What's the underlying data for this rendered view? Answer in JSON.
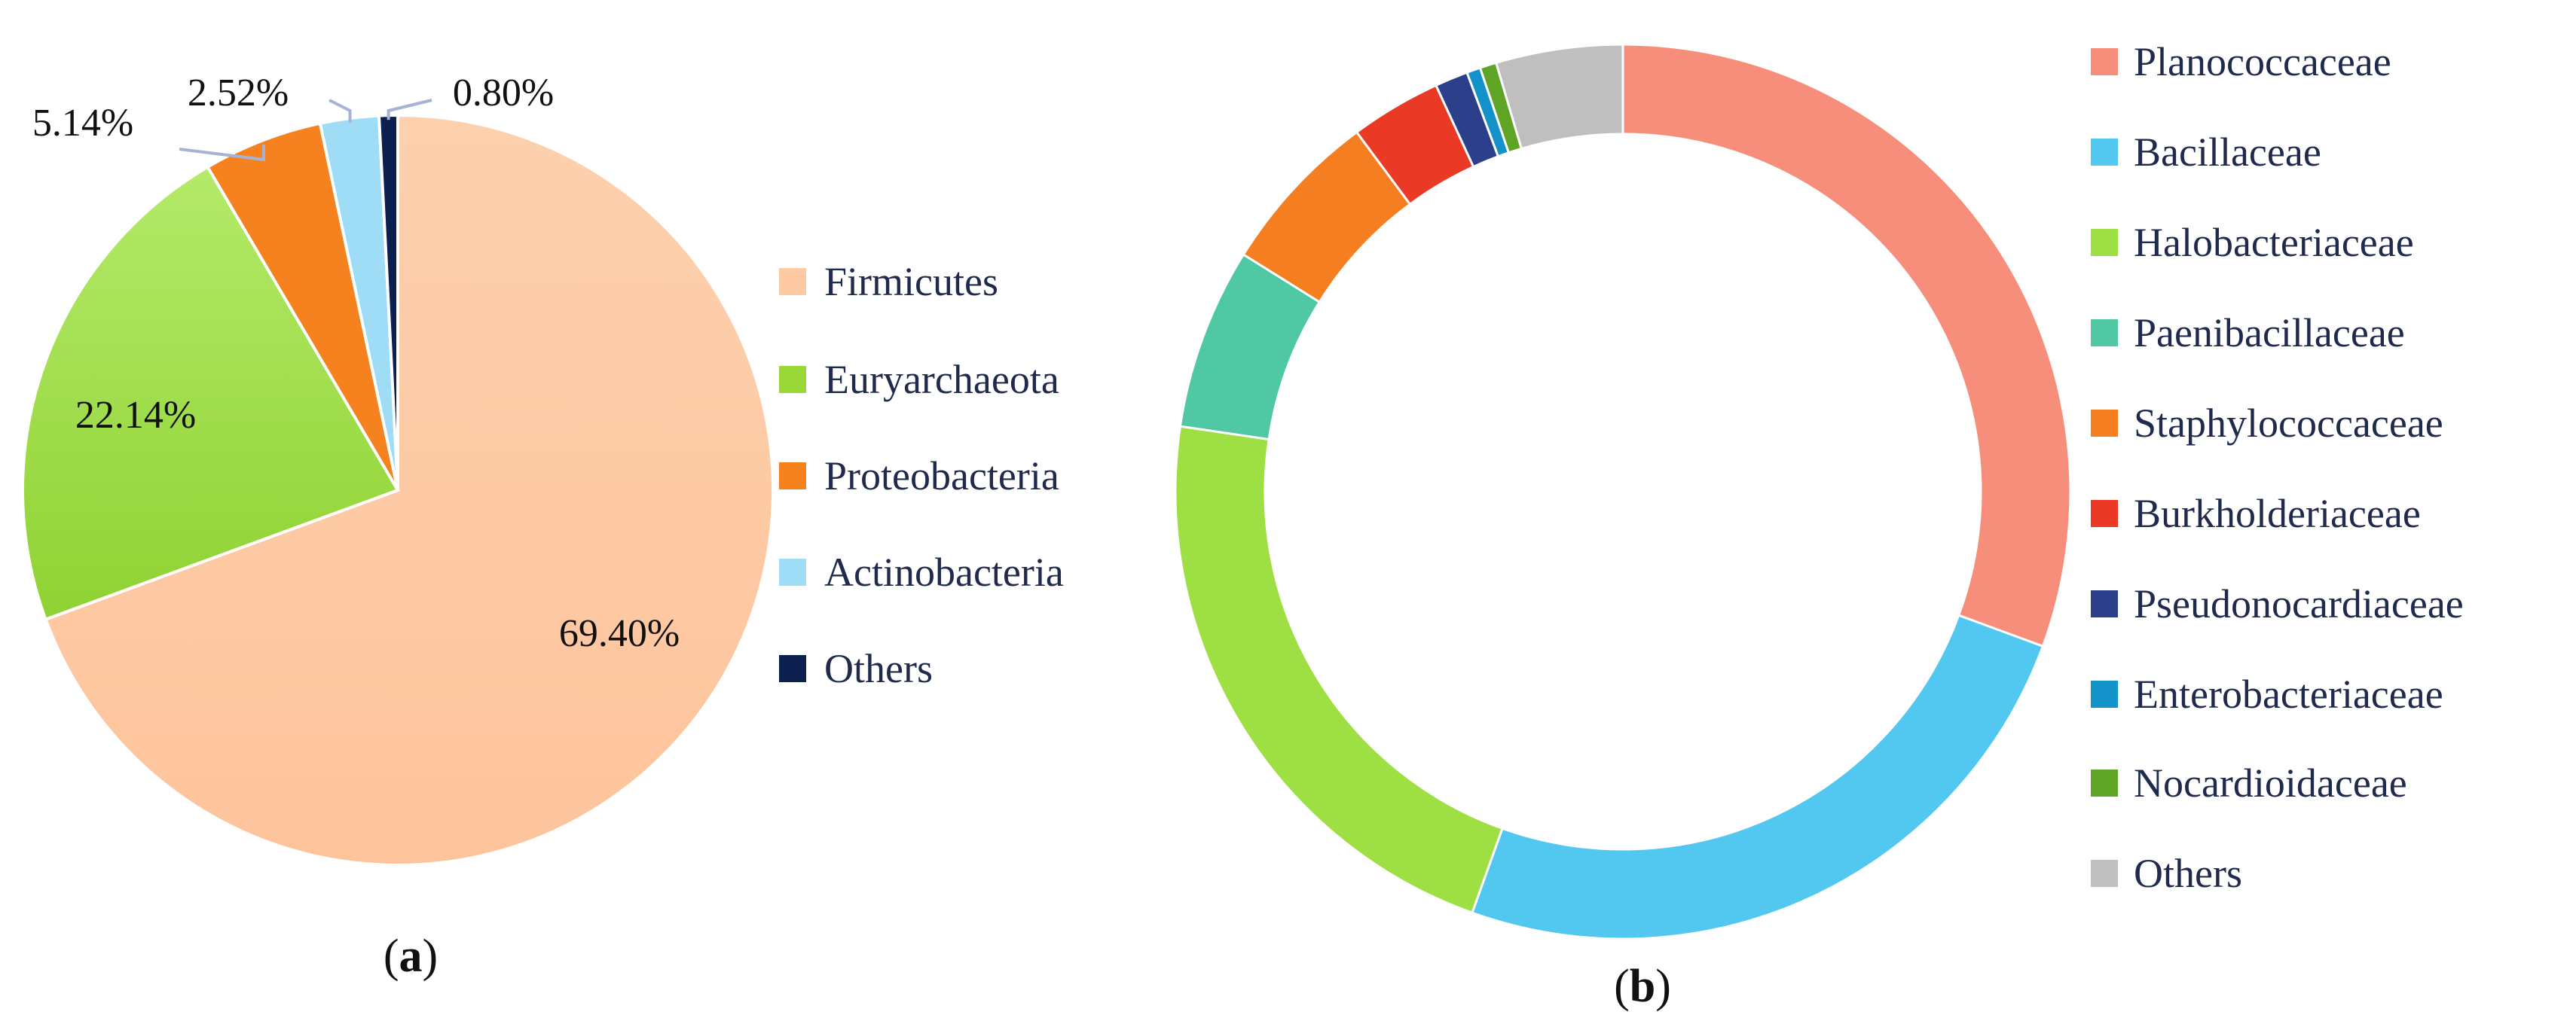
{
  "chart_data": [
    {
      "type": "pie",
      "panel_label": "a",
      "categories": [
        "Firmicutes",
        "Euryarchaeota",
        "Proteobacteria",
        "Actinobacteria",
        "Others"
      ],
      "values": [
        69.4,
        22.14,
        5.14,
        2.52,
        0.8
      ],
      "value_labels": [
        "69.40%",
        "22.14%",
        "5.14%",
        "2.52%",
        "0.80%"
      ],
      "colors": [
        "#fdcaa3",
        "#9ad83a",
        "#f5821f",
        "#9fdcf6",
        "#0c2050"
      ],
      "legend_position": "right"
    },
    {
      "type": "pie",
      "variant": "donut",
      "panel_label": "b",
      "categories": [
        "Planococcaceae",
        "Bacillaceae",
        "Halobacteriaceae",
        "Paenibacillaceae",
        "Staphylococcaceae",
        "Burkholderiaceae",
        "Pseudonocardiaceae",
        "Enterobacteriaceae",
        "Nocardioidaceae",
        "Others"
      ],
      "values": [
        30.8,
        25.0,
        22.0,
        6.6,
        6.0,
        3.3,
        1.2,
        0.5,
        0.6,
        4.6
      ],
      "colors": [
        "#f68e7b",
        "#52c7f0",
        "#9ee043",
        "#4fc8a3",
        "#f57f20",
        "#ea3a26",
        "#2b3f8a",
        "#1391c9",
        "#5ea526",
        "#bfbfbf"
      ],
      "legend_position": "right"
    }
  ]
}
